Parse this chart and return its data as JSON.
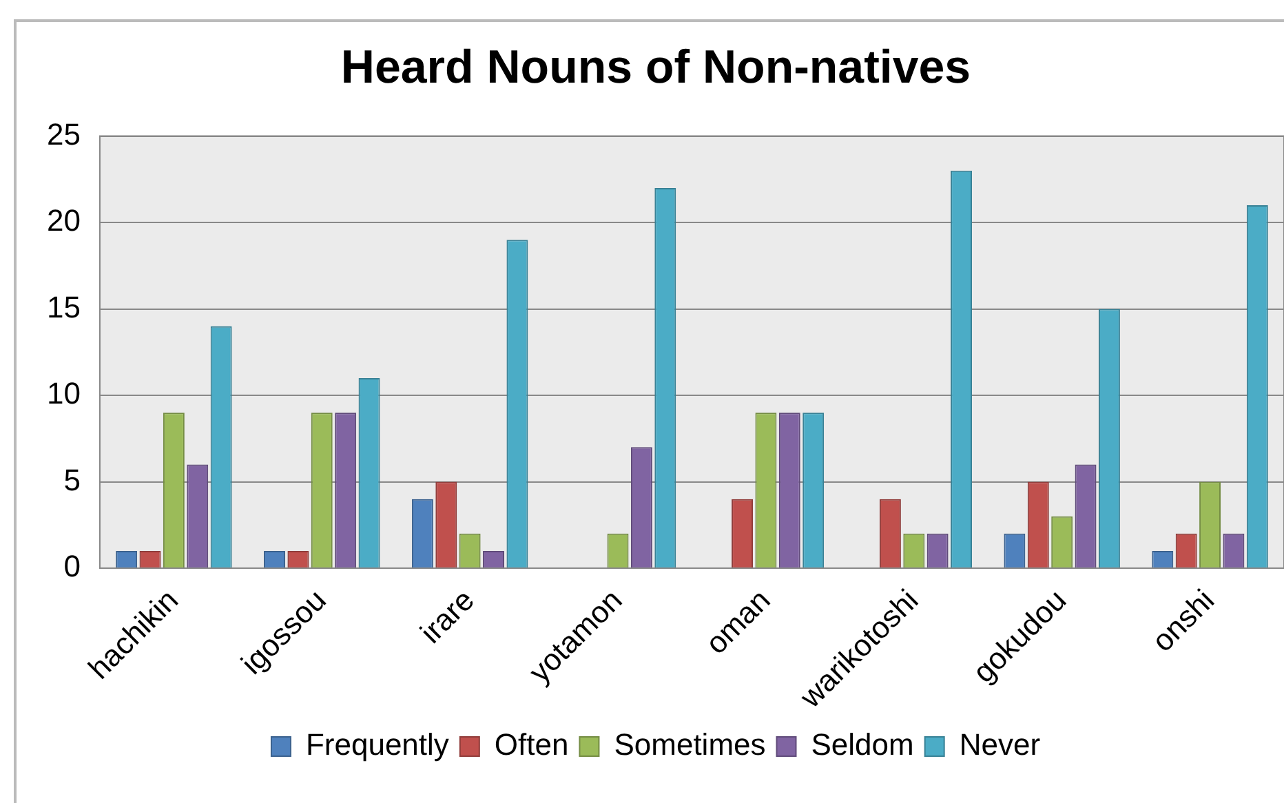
{
  "chart_data": {
    "type": "bar",
    "title": "Heard Nouns of Non-natives",
    "categories": [
      "hachikin",
      "igossou",
      "irare",
      "yotamon",
      "oman",
      "warikotoshi",
      "gokudou",
      "onshi"
    ],
    "series": [
      {
        "name": "Frequently",
        "color": "#4f81bd",
        "values": [
          1,
          1,
          4,
          0,
          0,
          0,
          2,
          1
        ]
      },
      {
        "name": "Often",
        "color": "#c0504d",
        "values": [
          1,
          1,
          5,
          0,
          4,
          4,
          5,
          2
        ]
      },
      {
        "name": "Sometimes",
        "color": "#9bbb59",
        "values": [
          9,
          9,
          2,
          2,
          9,
          2,
          3,
          5
        ]
      },
      {
        "name": "Seldom",
        "color": "#8064a2",
        "values": [
          6,
          9,
          1,
          7,
          9,
          2,
          6,
          2
        ]
      },
      {
        "name": "Never",
        "color": "#4bacc6",
        "values": [
          14,
          11,
          19,
          22,
          9,
          23,
          15,
          21
        ]
      }
    ],
    "ylim": [
      0,
      25
    ],
    "yticks": [
      0,
      5,
      10,
      15,
      20,
      25
    ],
    "grid": "y",
    "legend": "bottom"
  }
}
